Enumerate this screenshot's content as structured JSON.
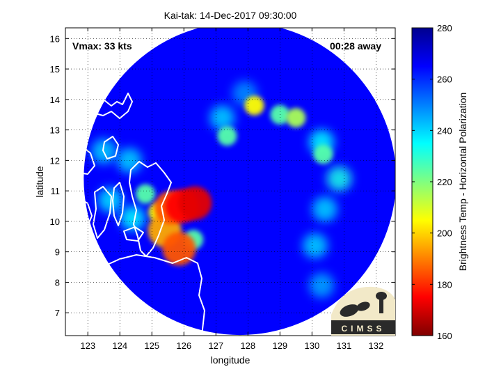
{
  "chart_data": {
    "type": "heatmap",
    "title": "Kai-tak: 14-Dec-2017 09:30:00",
    "xlabel": "longitude",
    "ylabel": "latitude",
    "xlim": [
      122.3,
      132.6
    ],
    "ylim": [
      6.25,
      16.35
    ],
    "x_ticks": [
      123,
      124,
      125,
      126,
      127,
      128,
      129,
      130,
      131,
      132
    ],
    "y_ticks": [
      7,
      8,
      9,
      10,
      11,
      12,
      13,
      14,
      15,
      16
    ],
    "grid": true,
    "annotations": {
      "vmax": "Vmax: 33 kts",
      "time_away": "00:28 away"
    },
    "colorbar": {
      "label": "Brightness Temp - Horizontal Polarization",
      "ticks": [
        160,
        180,
        200,
        220,
        240,
        260,
        280
      ],
      "range": [
        160,
        280
      ],
      "colors": [
        "#7f0000",
        "#ff0000",
        "#ff8000",
        "#ffff00",
        "#80ff80",
        "#00ffff",
        "#0080ff",
        "#0000ff",
        "#00008f"
      ]
    },
    "swath": {
      "center": [
        127.75,
        11.4
      ],
      "radius_deg": 5.0,
      "background_temp": 265
    },
    "features": [
      {
        "lon": 125.95,
        "lat": 10.5,
        "temp": 175
      },
      {
        "lon": 126.35,
        "lat": 10.6,
        "temp": 172
      },
      {
        "lon": 125.6,
        "lat": 10.45,
        "temp": 185
      },
      {
        "lon": 125.4,
        "lat": 9.7,
        "temp": 195
      },
      {
        "lon": 125.85,
        "lat": 9.1,
        "temp": 185
      },
      {
        "lon": 125.2,
        "lat": 10.3,
        "temp": 205
      },
      {
        "lon": 126.3,
        "lat": 9.4,
        "temp": 225
      },
      {
        "lon": 124.8,
        "lat": 10.9,
        "temp": 225
      },
      {
        "lon": 124.4,
        "lat": 10.1,
        "temp": 235
      },
      {
        "lon": 123.7,
        "lat": 10.7,
        "temp": 238
      },
      {
        "lon": 123.5,
        "lat": 12.3,
        "temp": 240
      },
      {
        "lon": 124.3,
        "lat": 12.0,
        "temp": 240
      },
      {
        "lon": 127.2,
        "lat": 13.4,
        "temp": 240
      },
      {
        "lon": 128.2,
        "lat": 13.8,
        "temp": 205
      },
      {
        "lon": 129.0,
        "lat": 13.5,
        "temp": 225
      },
      {
        "lon": 129.5,
        "lat": 13.4,
        "temp": 215
      },
      {
        "lon": 127.35,
        "lat": 12.8,
        "temp": 225
      },
      {
        "lon": 130.3,
        "lat": 12.6,
        "temp": 235
      },
      {
        "lon": 130.35,
        "lat": 12.2,
        "temp": 225
      },
      {
        "lon": 130.85,
        "lat": 11.4,
        "temp": 232
      },
      {
        "lon": 130.4,
        "lat": 10.4,
        "temp": 240
      },
      {
        "lon": 130.1,
        "lat": 9.2,
        "temp": 240
      },
      {
        "lon": 130.3,
        "lat": 7.9,
        "temp": 245
      },
      {
        "lon": 127.9,
        "lat": 14.2,
        "temp": 248
      }
    ]
  },
  "logo": {
    "text": "CIMSS"
  }
}
